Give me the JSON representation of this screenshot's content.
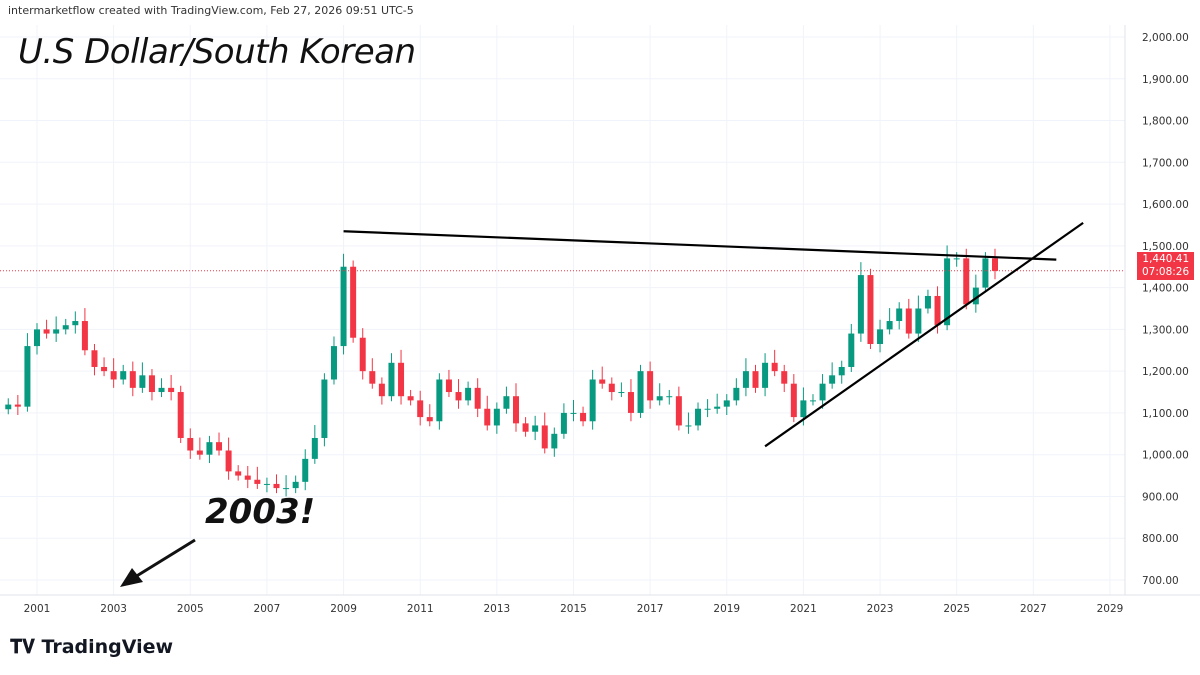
{
  "credit": "intermarketflow created with TradingView.com, Feb 27, 2026 09:51 UTC-5",
  "logo": "TradingView",
  "chart_data": {
    "type": "candlestick",
    "title": "U.S Dollar/South Korean",
    "annotation": "2003!",
    "ylim": [
      700,
      2000
    ],
    "xlim": [
      2000.3,
      2029.5
    ],
    "yticks": [
      2000,
      1900,
      1800,
      1700,
      1600,
      1500,
      1400,
      1300,
      1200,
      1100,
      1000,
      900,
      800,
      700
    ],
    "ytick_labels": [
      "2,000.00",
      "1,900.00",
      "1,800.00",
      "1,700.00",
      "1,600.00",
      "1,500.00",
      "1,400.00",
      "1,300.00",
      "1,200.00",
      "1,100.00",
      "1,000.00",
      "900.00",
      "800.00",
      "700.00"
    ],
    "xticks": [
      2001,
      2003,
      2005,
      2007,
      2009,
      2011,
      2013,
      2015,
      2017,
      2019,
      2021,
      2023,
      2025,
      2027,
      2029
    ],
    "start": 2000.25,
    "quarterly_close": [
      1120,
      1115,
      1260,
      1300,
      1290,
      1300,
      1310,
      1320,
      1250,
      1210,
      1200,
      1180,
      1200,
      1160,
      1190,
      1150,
      1160,
      1150,
      1040,
      1010,
      1000,
      1030,
      1010,
      960,
      950,
      940,
      930,
      930,
      920,
      920,
      935,
      990,
      1040,
      1180,
      1260,
      1450,
      1280,
      1200,
      1170,
      1140,
      1220,
      1140,
      1130,
      1090,
      1080,
      1180,
      1150,
      1130,
      1160,
      1110,
      1070,
      1110,
      1140,
      1075,
      1055,
      1070,
      1015,
      1050,
      1100,
      1100,
      1080,
      1180,
      1170,
      1150,
      1150,
      1100,
      1200,
      1130,
      1140,
      1140,
      1070,
      1070,
      1110,
      1110,
      1115,
      1130,
      1160,
      1200,
      1160,
      1220,
      1200,
      1170,
      1090,
      1130,
      1130,
      1170,
      1190,
      1210,
      1290,
      1430,
      1265,
      1300,
      1320,
      1350,
      1290,
      1350,
      1380,
      1310,
      1470,
      1470,
      1360,
      1400,
      1470,
      1440
    ],
    "last_price": "1,440.41",
    "last_price_value": 1440.41,
    "countdown": "07:08:26",
    "trendlines": [
      {
        "from": [
          2009.0,
          1535
        ],
        "to": [
          2027.6,
          1467
        ]
      },
      {
        "from": [
          2020.0,
          1020
        ],
        "to": [
          2028.3,
          1555
        ]
      }
    ],
    "colors": {
      "up": "#089981",
      "down": "#f23645",
      "price_line": "#f23645"
    }
  }
}
